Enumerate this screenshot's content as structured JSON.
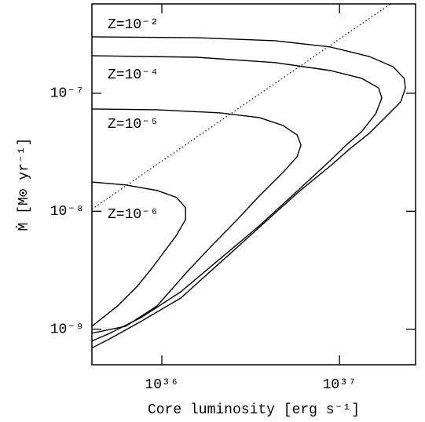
{
  "chart_data": {
    "type": "line",
    "xlabel": "Core luminosity [erg s⁻¹]",
    "ylabel": "Ṁ [M⊙ yr⁻¹]",
    "xscale": "log",
    "yscale": "log",
    "xlim": [
      4.04e+35,
      2.68e+37
    ],
    "ylim": [
      5e-10,
      5.72e-07
    ],
    "xticks": [
      {
        "value": 1e+36,
        "label": "10³⁶"
      },
      {
        "value": 1e+37,
        "label": "10³⁷"
      }
    ],
    "yticks": [
      {
        "value": 1e-09,
        "label": "10⁻⁹"
      },
      {
        "value": 1e-08,
        "label": "10⁻⁸"
      },
      {
        "value": 1e-07,
        "label": "10⁻⁷"
      }
    ],
    "annotations": [
      "Z=10⁻²",
      "Z=10⁻⁴",
      "Z=10⁻⁵",
      "Z=10⁻⁶"
    ],
    "series": [
      {
        "color": "#000000",
        "dash": false,
        "x": [
          4.04e+35,
          1.57e+36,
          4.34e+36,
          8.85e+36,
          1.47e+37,
          2e+37,
          2.31e+37,
          2.35e+37,
          2.21e+37,
          1.9e+37,
          1.47e+37,
          1.14e+37,
          8.85e+36,
          5.89e+36,
          3.54e+36,
          2.13e+36,
          1.28e+36,
          7.67e+35,
          5.11e+35,
          4.04e+35
        ],
        "values": [
          3.01e-07,
          2.96e-07,
          2.79e-07,
          2.47e-07,
          2.05e-07,
          1.68e-07,
          1.34e-07,
          1.11e-07,
          8.45e-08,
          6.72e-08,
          4.58e-08,
          3.37e-08,
          2.41e-08,
          1.46e-08,
          7.31e-09,
          3.67e-09,
          1.84e-09,
          1.17e-09,
          8.32e-10,
          6.93e-10
        ]
      },
      {
        "color": "#000000",
        "dash": false,
        "x": [
          4.04e+35,
          1.57e+36,
          4.34e+36,
          8.85e+36,
          1.33e+37,
          1.66e+37,
          1.73e+37,
          1.6e+37,
          1.33e+37,
          1.09e+37,
          8.85e+36,
          5.89e+36,
          3.54e+36,
          2.13e+36,
          1.28e+36,
          7.67e+35,
          5.11e+35,
          4.04e+35
        ],
        "values": [
          2.08e-07,
          2.02e-07,
          1.82e-07,
          1.56e-07,
          1.34e-07,
          1.11e-07,
          9.12e-08,
          6.72e-08,
          4.72e-08,
          3.64e-08,
          2.68e-08,
          1.52e-08,
          7.54e-09,
          3.96e-09,
          2.08e-09,
          1.26e-09,
          9.26e-10,
          7.95e-10
        ]
      },
      {
        "color": "#000000",
        "dash": false,
        "x": [
          4.04e+35,
          9.41e+35,
          2.13e+36,
          3.54e+36,
          4.8e+36,
          5.77e+36,
          6.07e+36,
          5.77e+36,
          4.8e+36,
          3.54e+36,
          2.61e+36,
          1.92e+36,
          1.41e+36,
          9.41e+35,
          6.26e+35,
          4.04e+35
        ],
        "values": [
          7.36e-08,
          7.25e-08,
          6.82e-08,
          6.22e-08,
          5.34e-08,
          4.44e-08,
          3.64e-08,
          2.9e-08,
          2.13e-08,
          1.35e-08,
          8.26e-09,
          5.14e-09,
          3.15e-09,
          1.58e-09,
          1.06e-09,
          9.26e-10
        ]
      },
      {
        "color": "#000000",
        "dash": false,
        "x": [
          4.04e+35,
          6.26e+35,
          9.41e+35,
          1.21e+36,
          1.36e+36,
          1.36e+36,
          1.21e+36,
          1.04e+36,
          8.94e+35,
          7.29e+35,
          5.65e+35,
          4.61e+35,
          4.04e+35
        ],
        "values": [
          1.77e-08,
          1.67e-08,
          1.5e-08,
          1.31e-08,
          1.07e-08,
          8.51e-09,
          6.27e-09,
          4.62e-09,
          3.4e-09,
          2.32e-09,
          1.58e-09,
          1.24e-09,
          1.06e-09
        ]
      },
      {
        "color": "#000000",
        "dash": true,
        "x": [
          4.04e+35,
          1.94e+37
        ],
        "values": [
          1.04e-08,
          5.72e-07
        ]
      }
    ]
  }
}
